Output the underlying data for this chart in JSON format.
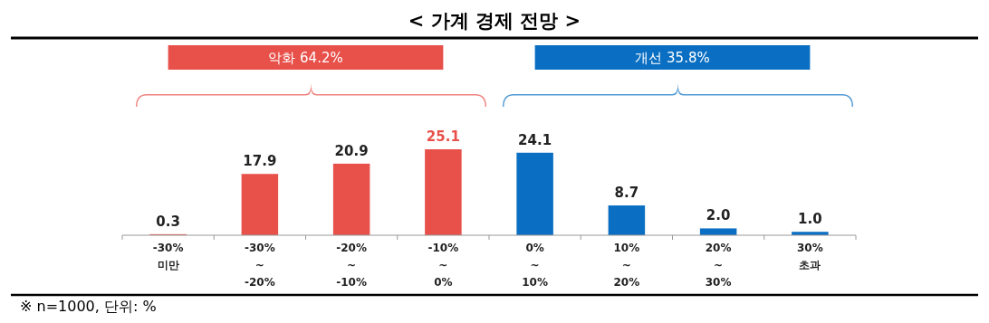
{
  "chart_data": {
    "type": "bar",
    "title": "< 가계 경제 전망 >",
    "categories": [
      "-30%\n미만",
      "-30%\n~\n-20%",
      "-20%\n~\n-10%",
      "-10%\n~\n0%",
      "0%\n~\n10%",
      "10%\n~\n20%",
      "20%\n~\n30%",
      "30%\n초과"
    ],
    "values": [
      0.3,
      17.9,
      20.9,
      25.1,
      24.1,
      8.7,
      2.0,
      1.0
    ],
    "colors": [
      "#e8504a",
      "#e8504a",
      "#e8504a",
      "#e8504a",
      "#0a6fc2",
      "#0a6fc2",
      "#0a6fc2",
      "#0a6fc2"
    ],
    "value_labels": [
      "0.3",
      "17.9",
      "20.9",
      "25.1",
      "24.1",
      "8.7",
      "2.0",
      "1.0"
    ],
    "annotations": [
      "악화 64.2%",
      "개선 35.8%",
      "※ n=1000, 단위: %"
    ]
  }
}
